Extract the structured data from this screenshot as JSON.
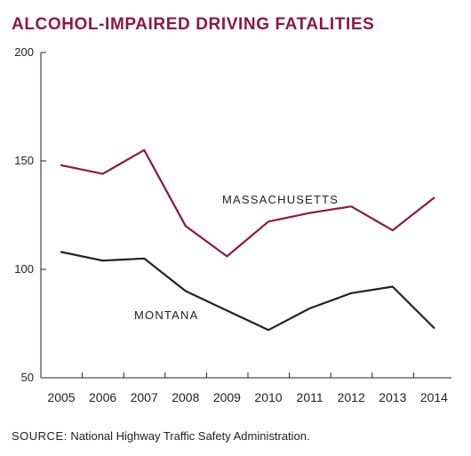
{
  "chart_data": {
    "type": "line",
    "title": "ALCOHOL-IMPAIRED DRIVING FATALITIES",
    "xlabel": "",
    "ylabel": "",
    "categories": [
      "2005",
      "2006",
      "2007",
      "2008",
      "2009",
      "2010",
      "2011",
      "2012",
      "2013",
      "2014"
    ],
    "ylim": [
      50,
      200
    ],
    "yticks": [
      50,
      100,
      150,
      200
    ],
    "grid": false,
    "series": [
      {
        "name": "MASSACHUSETTS",
        "color": "#8b1a3f",
        "values": [
          148,
          144,
          155,
          120,
          106,
          122,
          126,
          129,
          118,
          133
        ]
      },
      {
        "name": "MONTANA",
        "color": "#222222",
        "values": [
          108,
          104,
          105,
          90,
          81,
          72,
          82,
          89,
          92,
          73
        ]
      }
    ]
  },
  "source": {
    "prefix": "SOURCE:",
    "text": " National Highway Traffic Safety Administration."
  }
}
